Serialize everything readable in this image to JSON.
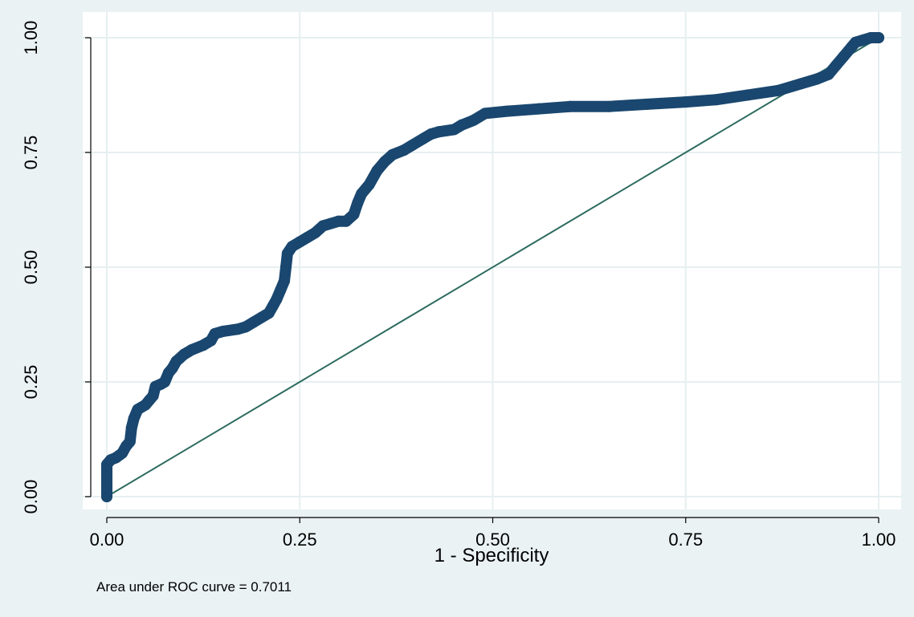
{
  "chart_data": {
    "type": "line",
    "title": "",
    "xlabel": "1 - Specificity",
    "ylabel": "",
    "xlim": [
      0,
      1
    ],
    "ylim": [
      0,
      1
    ],
    "x_ticks": [
      "0.00",
      "0.25",
      "0.50",
      "0.75",
      "1.00"
    ],
    "y_ticks": [
      "0.00",
      "0.25",
      "0.50",
      "0.75",
      "1.00"
    ],
    "grid": true,
    "note": "Area under ROC curve = 0.7011",
    "colors": {
      "curve": "#1a476f",
      "reference": "#2d6b5f",
      "grid": "#e6eff0",
      "background": "#eaf2f3",
      "plot": "#ffffff"
    },
    "series": [
      {
        "values": [
          [
            0.0,
            0.0
          ],
          [
            0.0,
            0.02
          ],
          [
            0.0,
            0.05
          ],
          [
            0.0,
            0.07
          ],
          [
            0.005,
            0.08
          ],
          [
            0.012,
            0.085
          ],
          [
            0.02,
            0.095
          ],
          [
            0.025,
            0.11
          ],
          [
            0.03,
            0.12
          ],
          [
            0.032,
            0.15
          ],
          [
            0.035,
            0.17
          ],
          [
            0.04,
            0.19
          ],
          [
            0.05,
            0.2
          ],
          [
            0.055,
            0.21
          ],
          [
            0.06,
            0.22
          ],
          [
            0.063,
            0.24
          ],
          [
            0.07,
            0.245
          ],
          [
            0.075,
            0.25
          ],
          [
            0.08,
            0.27
          ],
          [
            0.085,
            0.28
          ],
          [
            0.09,
            0.295
          ],
          [
            0.1,
            0.31
          ],
          [
            0.11,
            0.32
          ],
          [
            0.125,
            0.33
          ],
          [
            0.135,
            0.34
          ],
          [
            0.14,
            0.355
          ],
          [
            0.15,
            0.36
          ],
          [
            0.17,
            0.365
          ],
          [
            0.18,
            0.37
          ],
          [
            0.19,
            0.38
          ],
          [
            0.2,
            0.39
          ],
          [
            0.21,
            0.4
          ],
          [
            0.215,
            0.415
          ],
          [
            0.22,
            0.43
          ],
          [
            0.225,
            0.45
          ],
          [
            0.23,
            0.47
          ],
          [
            0.232,
            0.5
          ],
          [
            0.234,
            0.53
          ],
          [
            0.24,
            0.545
          ],
          [
            0.25,
            0.555
          ],
          [
            0.26,
            0.565
          ],
          [
            0.27,
            0.575
          ],
          [
            0.28,
            0.59
          ],
          [
            0.29,
            0.595
          ],
          [
            0.3,
            0.6
          ],
          [
            0.31,
            0.6
          ],
          [
            0.32,
            0.615
          ],
          [
            0.325,
            0.64
          ],
          [
            0.33,
            0.66
          ],
          [
            0.34,
            0.68
          ],
          [
            0.35,
            0.71
          ],
          [
            0.36,
            0.73
          ],
          [
            0.37,
            0.745
          ],
          [
            0.385,
            0.755
          ],
          [
            0.395,
            0.765
          ],
          [
            0.41,
            0.78
          ],
          [
            0.42,
            0.79
          ],
          [
            0.43,
            0.795
          ],
          [
            0.45,
            0.8
          ],
          [
            0.46,
            0.81
          ],
          [
            0.475,
            0.82
          ],
          [
            0.49,
            0.835
          ],
          [
            0.52,
            0.84
          ],
          [
            0.56,
            0.845
          ],
          [
            0.6,
            0.85
          ],
          [
            0.65,
            0.85
          ],
          [
            0.7,
            0.855
          ],
          [
            0.75,
            0.86
          ],
          [
            0.79,
            0.865
          ],
          [
            0.83,
            0.875
          ],
          [
            0.87,
            0.885
          ],
          [
            0.9,
            0.9
          ],
          [
            0.92,
            0.91
          ],
          [
            0.935,
            0.92
          ],
          [
            0.945,
            0.94
          ],
          [
            0.955,
            0.96
          ],
          [
            0.965,
            0.98
          ],
          [
            0.97,
            0.99
          ],
          [
            0.98,
            0.995
          ],
          [
            0.99,
            1.0
          ],
          [
            1.0,
            1.0
          ]
        ]
      },
      {
        "values": [
          [
            0.0,
            0.0
          ],
          [
            1.0,
            1.0
          ]
        ]
      }
    ]
  }
}
